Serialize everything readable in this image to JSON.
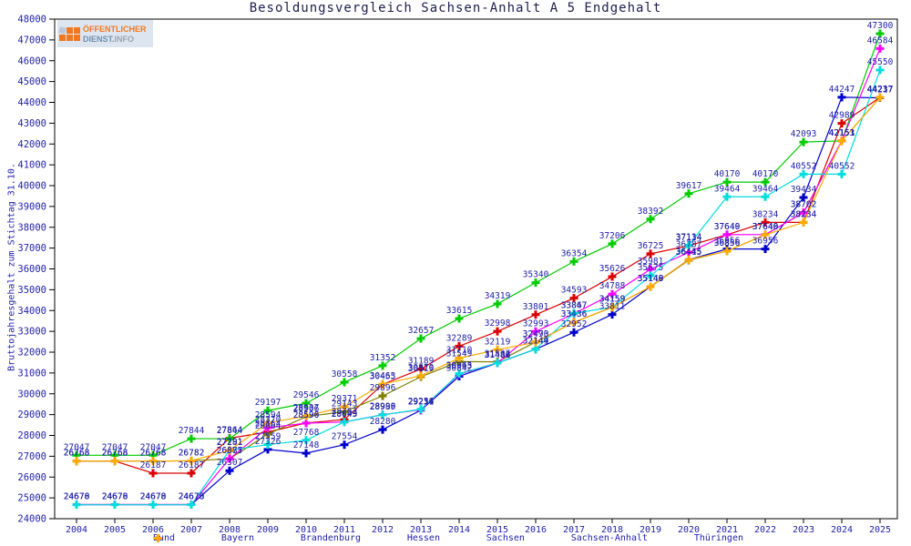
{
  "title": "Besoldungsvergleich Sachsen-Anhalt A 5 Endgehalt",
  "logo": {
    "line1": "ÖFFENTLICHER",
    "line2_part1": "DIENST.",
    "line2_part2": "INFO",
    "accent_color": "#f07820",
    "bg_color": "#dde6f0"
  },
  "axes": {
    "y_label": "Bruttojahresgehalt zum Stichtag 31.10.",
    "y_min": 24000,
    "y_max": 48000,
    "y_step": 1000
  },
  "text_colors": {
    "title": "#202050",
    "labels": "#2222aa",
    "axis": "#000000"
  },
  "chart_data": {
    "type": "line",
    "title": "Besoldungsvergleich Sachsen-Anhalt A 5 Endgehalt",
    "xlabel": "",
    "ylabel": "Bruttojahresgehalt zum Stichtag 31.10.",
    "ylim": [
      24000,
      48000
    ],
    "grid": false,
    "legend_position": "bottom",
    "point_labels": true,
    "x": [
      2004,
      2005,
      2006,
      2007,
      2008,
      2009,
      2010,
      2011,
      2012,
      2013,
      2014,
      2015,
      2016,
      2017,
      2018,
      2019,
      2020,
      2021,
      2022,
      2023,
      2024,
      2025
    ],
    "series": [
      {
        "name": "Bund",
        "color": "#dd0000",
        "values": [
          26768,
          26768,
          26187,
          26187,
          27864,
          28164,
          28596,
          28762,
          30455,
          31189,
          32289,
          32998,
          33801,
          34593,
          35626,
          36725,
          37114,
          37640,
          38234,
          38234,
          42989,
          44237
        ]
      },
      {
        "name": "Bayern",
        "color": "#00cc00",
        "values": [
          27047,
          27047,
          27047,
          27844,
          27844,
          29197,
          29546,
          30558,
          31352,
          32657,
          33615,
          34319,
          35340,
          36354,
          37206,
          38392,
          39617,
          40170,
          40170,
          42093,
          42151,
          47300
        ]
      },
      {
        "name": "Brandenburg",
        "color": "#0000cc",
        "values": [
          24678,
          24678,
          24678,
          24678,
          26307,
          27326,
          27148,
          27554,
          28280,
          29214,
          30842,
          31481,
          32144,
          32952,
          33811,
          35148,
          36445,
          36956,
          36956,
          39434,
          44247,
          44217
        ]
      },
      {
        "name": "Hessen",
        "color": "#808000",
        "values": [
          26768,
          26768,
          26768,
          26782,
          26877,
          28064,
          28906,
          29143,
          29896,
          30819,
          31549,
          31537,
          32490,
          33436,
          34159,
          35140,
          36415,
          36856,
          37640,
          38702,
          42151,
          44237
        ]
      },
      {
        "name": "Sachsen",
        "color": "#ff00ff",
        "values": [
          24678,
          24678,
          24678,
          24678,
          26885,
          28370,
          28590,
          28643,
          28998,
          29231,
          30943,
          31486,
          32993,
          33847,
          34788,
          35981,
          36787,
          37649,
          37648,
          38702,
          42153,
          46584
        ]
      },
      {
        "name": "Sachsen-Anhalt",
        "color": "#00dddd",
        "values": [
          24670,
          24670,
          24670,
          24670,
          27291,
          27559,
          27768,
          28649,
          28989,
          29256,
          30965,
          31480,
          32149,
          33867,
          34159,
          35675,
          37134,
          39464,
          39464,
          40552,
          40552,
          45550
        ]
      },
      {
        "name": "Thüringen",
        "color": "#ffaa00",
        "values": [
          26768,
          26768,
          26768,
          26782,
          27281,
          28594,
          28937,
          29371,
          30463,
          30870,
          31710,
          32119,
          32473,
          33436,
          34159,
          35149,
          36445,
          36856,
          37640,
          38234,
          42151,
          44237
        ]
      }
    ]
  }
}
